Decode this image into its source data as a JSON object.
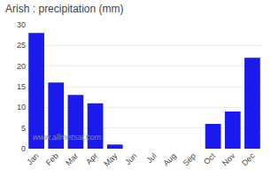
{
  "chart_data": {
    "type": "bar",
    "title": "Arish : precipitation (mm)",
    "categories": [
      "Jan",
      "Feb",
      "Mar",
      "Apr",
      "May",
      "Jun",
      "Jul",
      "Aug",
      "Sep",
      "Oct",
      "Nov",
      "Dec"
    ],
    "values": [
      28,
      16,
      13,
      11,
      1,
      0,
      0,
      0,
      0,
      6,
      9,
      22
    ],
    "color": "#1a1aee",
    "ylim": [
      0,
      30
    ],
    "yticks": [
      0,
      5,
      10,
      15,
      20,
      25,
      30
    ],
    "grid": true,
    "annotations": [
      "www.allmetsat.com"
    ]
  }
}
